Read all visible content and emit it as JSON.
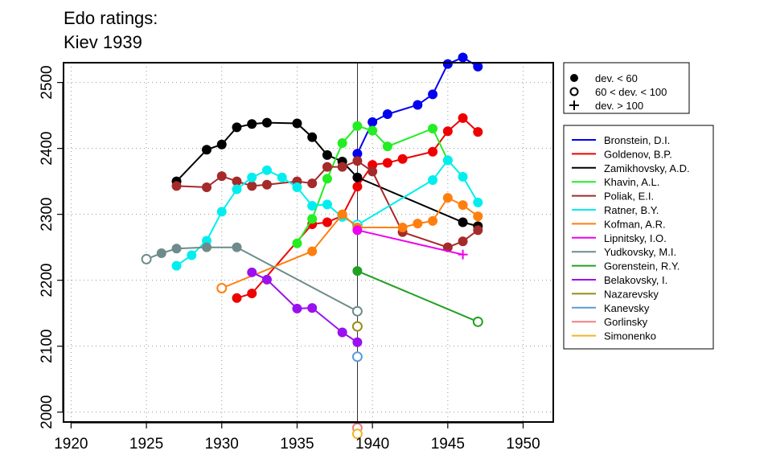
{
  "chart_data": {
    "type": "line",
    "title_lines": [
      "Edo ratings:",
      "Kiev 1939"
    ],
    "xlabel": "",
    "ylabel": "",
    "xlim": [
      1919.5,
      1952
    ],
    "ylim": [
      1985,
      2530
    ],
    "xticks": [
      1920,
      1925,
      1930,
      1935,
      1940,
      1945,
      1950
    ],
    "yticks": [
      2000,
      2100,
      2200,
      2300,
      2400,
      2500
    ],
    "grid": true,
    "reference_line_x": 1939,
    "marker_legend": [
      {
        "label": "dev. < 60",
        "marker": "filled"
      },
      {
        "label": "60 < dev. < 100",
        "marker": "open"
      },
      {
        "label": "dev. > 100",
        "marker": "plus"
      }
    ],
    "series": [
      {
        "name": "Bronstein, D.I.",
        "color": "#0000ee",
        "points": [
          [
            1939,
            2392,
            "f"
          ],
          [
            1940,
            2440,
            "f"
          ],
          [
            1941,
            2452,
            "f"
          ],
          [
            1943,
            2466,
            "f"
          ],
          [
            1944,
            2482,
            "f"
          ],
          [
            1945,
            2528,
            "f"
          ],
          [
            1946,
            2538,
            "f"
          ],
          [
            1947,
            2524,
            "f"
          ]
        ]
      },
      {
        "name": "Goldenov, B.P.",
        "color": "#ee0000",
        "points": [
          [
            1931,
            2173,
            "f"
          ],
          [
            1932,
            2180,
            "f"
          ],
          [
            1936,
            2285,
            "f"
          ],
          [
            1937,
            2288,
            "f"
          ],
          [
            1938,
            2298,
            "f"
          ],
          [
            1939,
            2342,
            "f"
          ],
          [
            1940,
            2375,
            "f"
          ],
          [
            1941,
            2378,
            "f"
          ],
          [
            1942,
            2384,
            "f"
          ],
          [
            1944,
            2395,
            "f"
          ],
          [
            1945,
            2426,
            "f"
          ],
          [
            1946,
            2446,
            "f"
          ],
          [
            1947,
            2425,
            "f"
          ]
        ]
      },
      {
        "name": "Zamikhovsky, A.D.",
        "color": "#000000",
        "points": [
          [
            1927,
            2350,
            "f"
          ],
          [
            1929,
            2398,
            "f"
          ],
          [
            1930,
            2406,
            "f"
          ],
          [
            1931,
            2432,
            "f"
          ],
          [
            1932,
            2437,
            "f"
          ],
          [
            1933,
            2439,
            "f"
          ],
          [
            1935,
            2438,
            "f"
          ],
          [
            1936,
            2417,
            "f"
          ],
          [
            1937,
            2390,
            "f"
          ],
          [
            1938,
            2380,
            "f"
          ],
          [
            1939,
            2356,
            "f"
          ],
          [
            1946,
            2288,
            "f"
          ],
          [
            1947,
            2282,
            "f"
          ]
        ]
      },
      {
        "name": "Khavin, A.L.",
        "color": "#22ee22",
        "points": [
          [
            1935,
            2256,
            "f"
          ],
          [
            1936,
            2293,
            "f"
          ],
          [
            1937,
            2354,
            "f"
          ],
          [
            1938,
            2408,
            "f"
          ],
          [
            1939,
            2434,
            "f"
          ],
          [
            1940,
            2427,
            "f"
          ],
          [
            1941,
            2403,
            "f"
          ],
          [
            1944,
            2430,
            "f"
          ],
          [
            1945,
            2382,
            "f"
          ]
        ]
      },
      {
        "name": "Poliak, E.I.",
        "color": "#a52a2a",
        "points": [
          [
            1927,
            2343,
            "f"
          ],
          [
            1929,
            2341,
            "f"
          ],
          [
            1930,
            2358,
            "f"
          ],
          [
            1931,
            2350,
            "f"
          ],
          [
            1932,
            2343,
            "f"
          ],
          [
            1933,
            2345,
            "f"
          ],
          [
            1935,
            2350,
            "f"
          ],
          [
            1936,
            2347,
            "f"
          ],
          [
            1937,
            2372,
            "f"
          ],
          [
            1938,
            2372,
            "f"
          ],
          [
            1939,
            2381,
            "f"
          ],
          [
            1940,
            2365,
            "f"
          ],
          [
            1942,
            2273,
            "f"
          ],
          [
            1945,
            2250,
            "f"
          ],
          [
            1946,
            2259,
            "f"
          ],
          [
            1947,
            2276,
            "f"
          ]
        ]
      },
      {
        "name": "Ratner, B.Y.",
        "color": "#00eeee",
        "points": [
          [
            1927,
            2222,
            "f"
          ],
          [
            1928,
            2238,
            "f"
          ],
          [
            1929,
            2260,
            "f"
          ],
          [
            1930,
            2304,
            "f"
          ],
          [
            1931,
            2338,
            "f"
          ],
          [
            1932,
            2356,
            "f"
          ],
          [
            1933,
            2367,
            "f"
          ],
          [
            1934,
            2356,
            "f"
          ],
          [
            1935,
            2341,
            "f"
          ],
          [
            1936,
            2313,
            "f"
          ],
          [
            1937,
            2315,
            "f"
          ],
          [
            1938,
            2296,
            "f"
          ],
          [
            1939,
            2284,
            "o"
          ],
          [
            1944,
            2352,
            "f"
          ],
          [
            1945,
            2382,
            "f"
          ],
          [
            1946,
            2357,
            "f"
          ],
          [
            1947,
            2318,
            "f"
          ]
        ]
      },
      {
        "name": "Kofman, A.R.",
        "color": "#ff7f0e",
        "points": [
          [
            1930,
            2188,
            "o"
          ],
          [
            1936,
            2244,
            "f"
          ],
          [
            1938,
            2300,
            "f"
          ],
          [
            1939,
            2280,
            "f"
          ],
          [
            1942,
            2280,
            "f"
          ],
          [
            1943,
            2286,
            "f"
          ],
          [
            1944,
            2290,
            "f"
          ],
          [
            1945,
            2325,
            "f"
          ],
          [
            1946,
            2314,
            "f"
          ],
          [
            1947,
            2297,
            "f"
          ]
        ]
      },
      {
        "name": "Lipnitsky, I.O.",
        "color": "#ee00ee",
        "points": [
          [
            1939,
            2276,
            "f"
          ],
          [
            1946,
            2239,
            "p"
          ]
        ]
      },
      {
        "name": "Yudkovsky, M.I.",
        "color": "#6e8b8b",
        "points": [
          [
            1925,
            2232,
            "o"
          ],
          [
            1926,
            2241,
            "f"
          ],
          [
            1927,
            2248,
            "f"
          ],
          [
            1929,
            2250,
            "f"
          ],
          [
            1931,
            2250,
            "f"
          ],
          [
            1939,
            2153,
            "o"
          ]
        ]
      },
      {
        "name": "Gorenstein, R.Y.",
        "color": "#22a022",
        "points": [
          [
            1939,
            2214,
            "f"
          ],
          [
            1947,
            2137,
            "o"
          ]
        ]
      },
      {
        "name": "Belakovsky, I.",
        "color": "#9a10ee",
        "points": [
          [
            1932,
            2212,
            "f"
          ],
          [
            1933,
            2201,
            "f"
          ],
          [
            1935,
            2157,
            "f"
          ],
          [
            1936,
            2158,
            "f"
          ],
          [
            1938,
            2121,
            "f"
          ],
          [
            1939,
            2106,
            "f"
          ]
        ]
      },
      {
        "name": "Nazarevsky",
        "color": "#9a8a10",
        "points": [
          [
            1939,
            2130,
            "o"
          ]
        ]
      },
      {
        "name": "Kanevsky",
        "color": "#5a9ad8",
        "points": [
          [
            1939,
            2084,
            "o"
          ]
        ]
      },
      {
        "name": "Gorlinsky",
        "color": "#f08080",
        "points": [
          [
            1939,
            1976,
            "o"
          ]
        ]
      },
      {
        "name": "Simonenko",
        "color": "#f0b428",
        "points": [
          [
            1939,
            1967,
            "o"
          ]
        ]
      }
    ]
  }
}
